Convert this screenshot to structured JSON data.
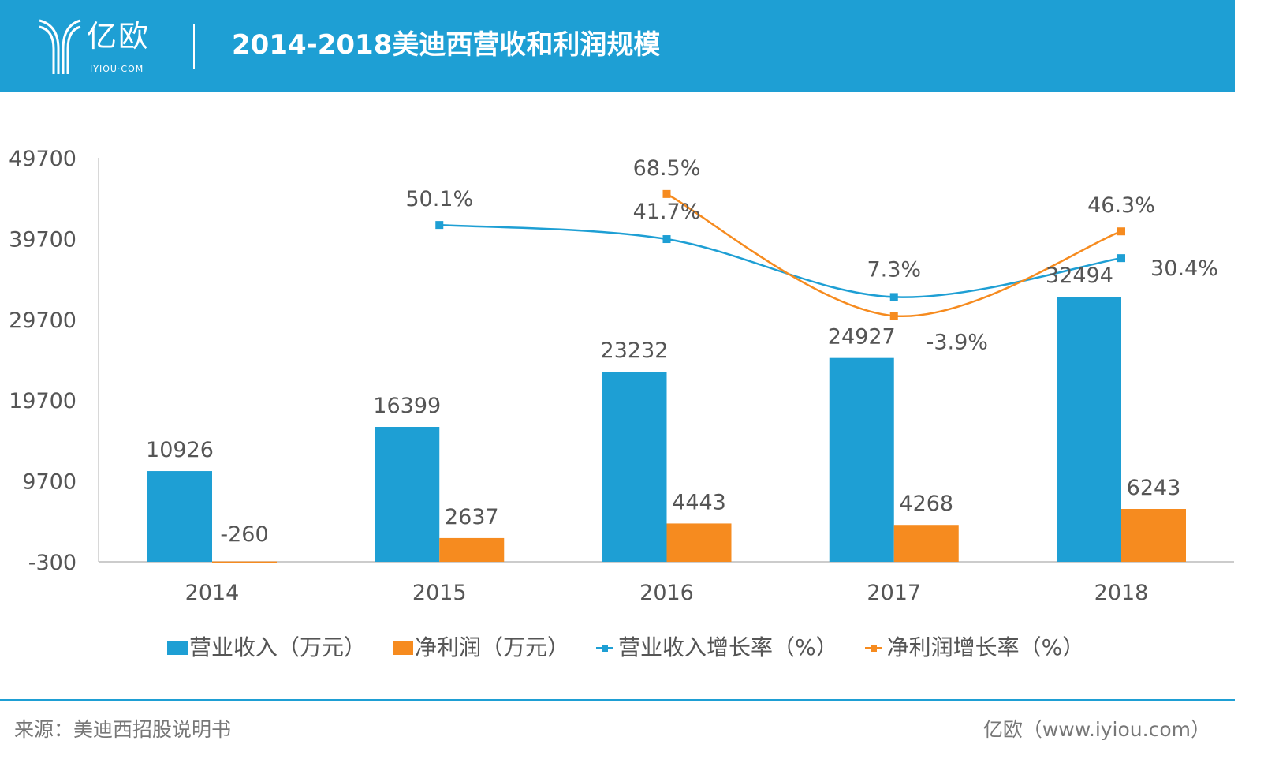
{
  "header": {
    "logo_text": "亿欧",
    "logo_subtext": "IYIOU·COM",
    "title": "2014-2018美迪西营收和利润规模"
  },
  "colors": {
    "header_bg": "#1e9fd4",
    "revenue": "#1e9fd4",
    "profit": "#f68b1f",
    "text": "#555555"
  },
  "chart_data": {
    "type": "bar",
    "title": "2014-2018美迪西营收和利润规模",
    "categories": [
      "2014",
      "2015",
      "2016",
      "2017",
      "2018"
    ],
    "ylim": [
      -300,
      49700
    ],
    "yticks": [
      -300,
      9700,
      19700,
      29700,
      39700,
      49700
    ],
    "y2lim": [
      -150,
      90
    ],
    "grid": false,
    "legend_position": "bottom",
    "series": [
      {
        "name": "营业收入（万元）",
        "kind": "bar",
        "axis": "primary",
        "color": "#1e9fd4",
        "values": [
          10926,
          16399,
          23232,
          24927,
          32494
        ],
        "labels": [
          "10926",
          "16399",
          "23232",
          "24927",
          "32494"
        ]
      },
      {
        "name": "净利润（万元）",
        "kind": "bar",
        "axis": "primary",
        "color": "#f68b1f",
        "values": [
          -260,
          2637,
          4443,
          4268,
          6243
        ],
        "labels": [
          "-260",
          "2637",
          "4443",
          "4268",
          "6243"
        ]
      },
      {
        "name": "营业收入增长率（%）",
        "kind": "line",
        "axis": "secondary",
        "color": "#1e9fd4",
        "values": [
          null,
          50.1,
          41.7,
          7.3,
          30.4
        ],
        "labels": [
          "",
          "50.1%",
          "41.7%",
          "7.3%",
          "30.4%"
        ]
      },
      {
        "name": "净利润增长率（%）",
        "kind": "line",
        "axis": "secondary",
        "color": "#f68b1f",
        "values": [
          null,
          null,
          68.5,
          -3.9,
          46.3
        ],
        "labels": [
          "",
          "",
          "68.5%",
          "-3.9%",
          "46.3%"
        ]
      }
    ]
  },
  "footer": {
    "source": "来源：美迪西招股说明书",
    "brand": "亿欧（www.iyiou.com）"
  }
}
